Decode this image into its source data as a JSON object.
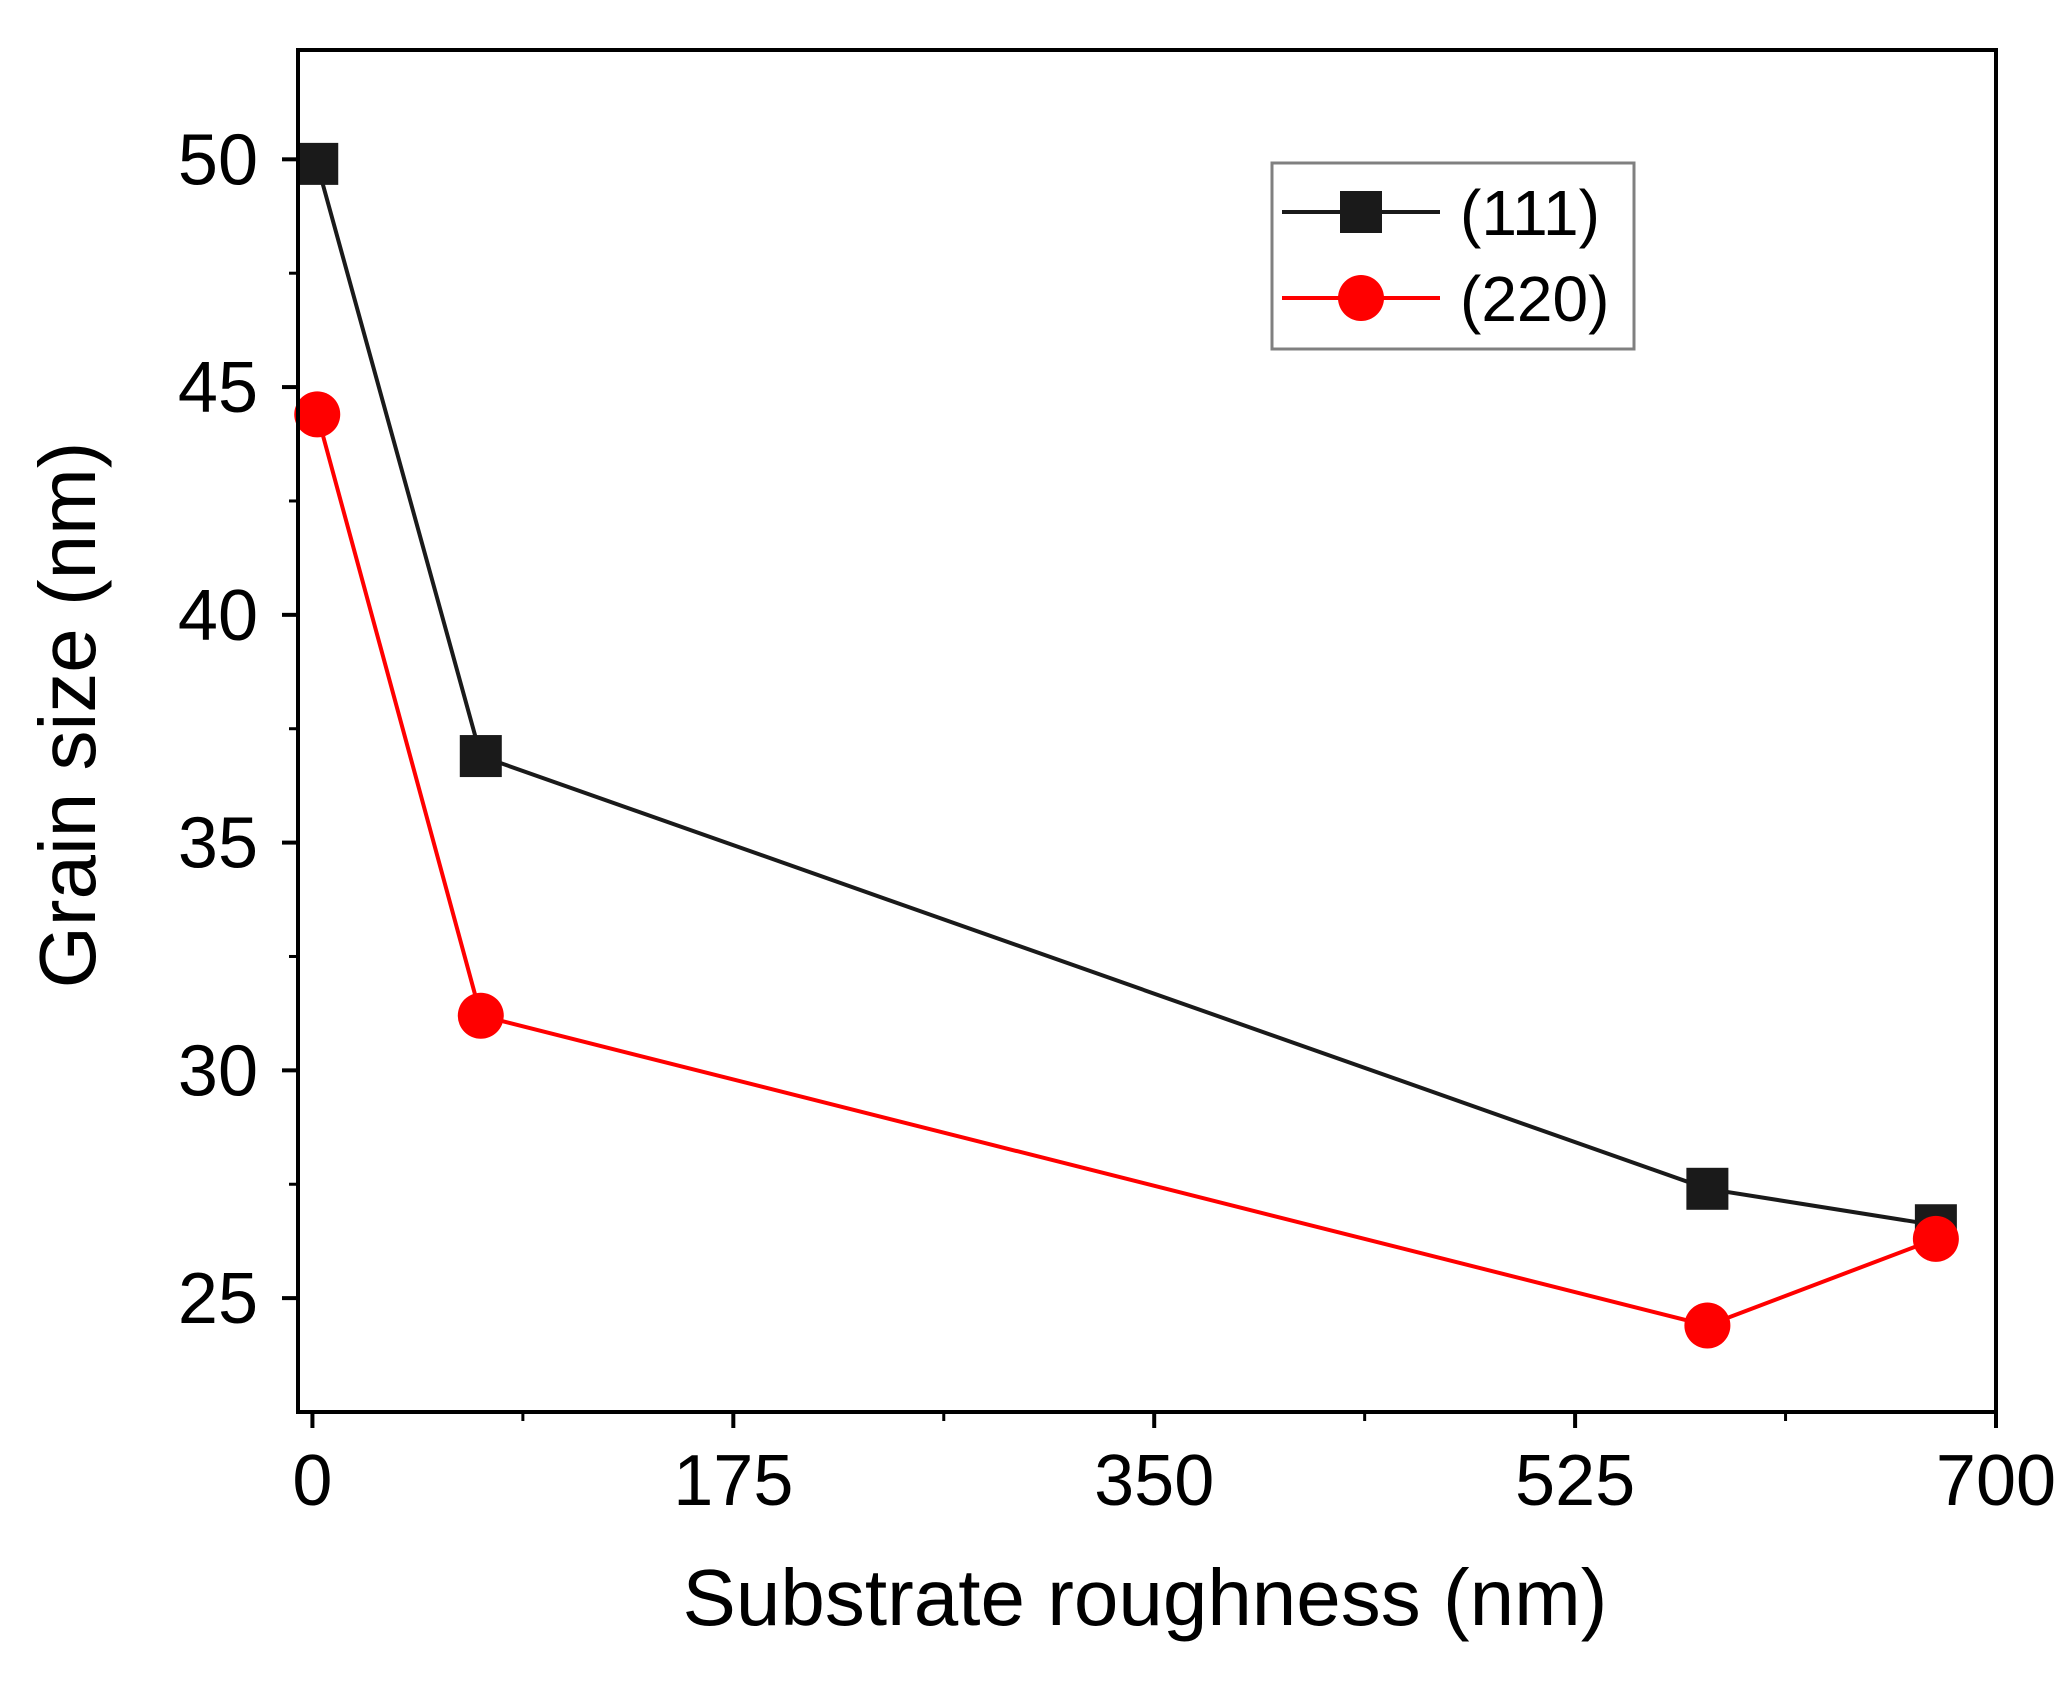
{
  "chart_data": {
    "type": "line",
    "title": "",
    "xlabel": "Substrate roughness (nm)",
    "ylabel": "Grain size (nm)",
    "xlim": [
      -6,
      700
    ],
    "ylim": [
      22.5,
      52.4
    ],
    "xticks": [
      0,
      175,
      350,
      525,
      700
    ],
    "xtick_labels": [
      "0",
      "175",
      "350",
      "525",
      "700"
    ],
    "yticks": [
      25,
      30,
      35,
      40,
      45,
      50
    ],
    "ytick_labels": [
      "25",
      "30",
      "35",
      "40",
      "45",
      "50"
    ],
    "grid": false,
    "legend_position": "top-right",
    "series": [
      {
        "name": "(111)",
        "color": "#1a1a1a",
        "marker": "square",
        "x": [
          2,
          70,
          580,
          675
        ],
        "y": [
          49.9,
          36.9,
          27.4,
          26.6
        ]
      },
      {
        "name": "(220)",
        "color": "#ff0000",
        "marker": "circle",
        "x": [
          2,
          70,
          580,
          675
        ],
        "y": [
          44.4,
          31.2,
          24.4,
          26.3
        ]
      }
    ]
  }
}
